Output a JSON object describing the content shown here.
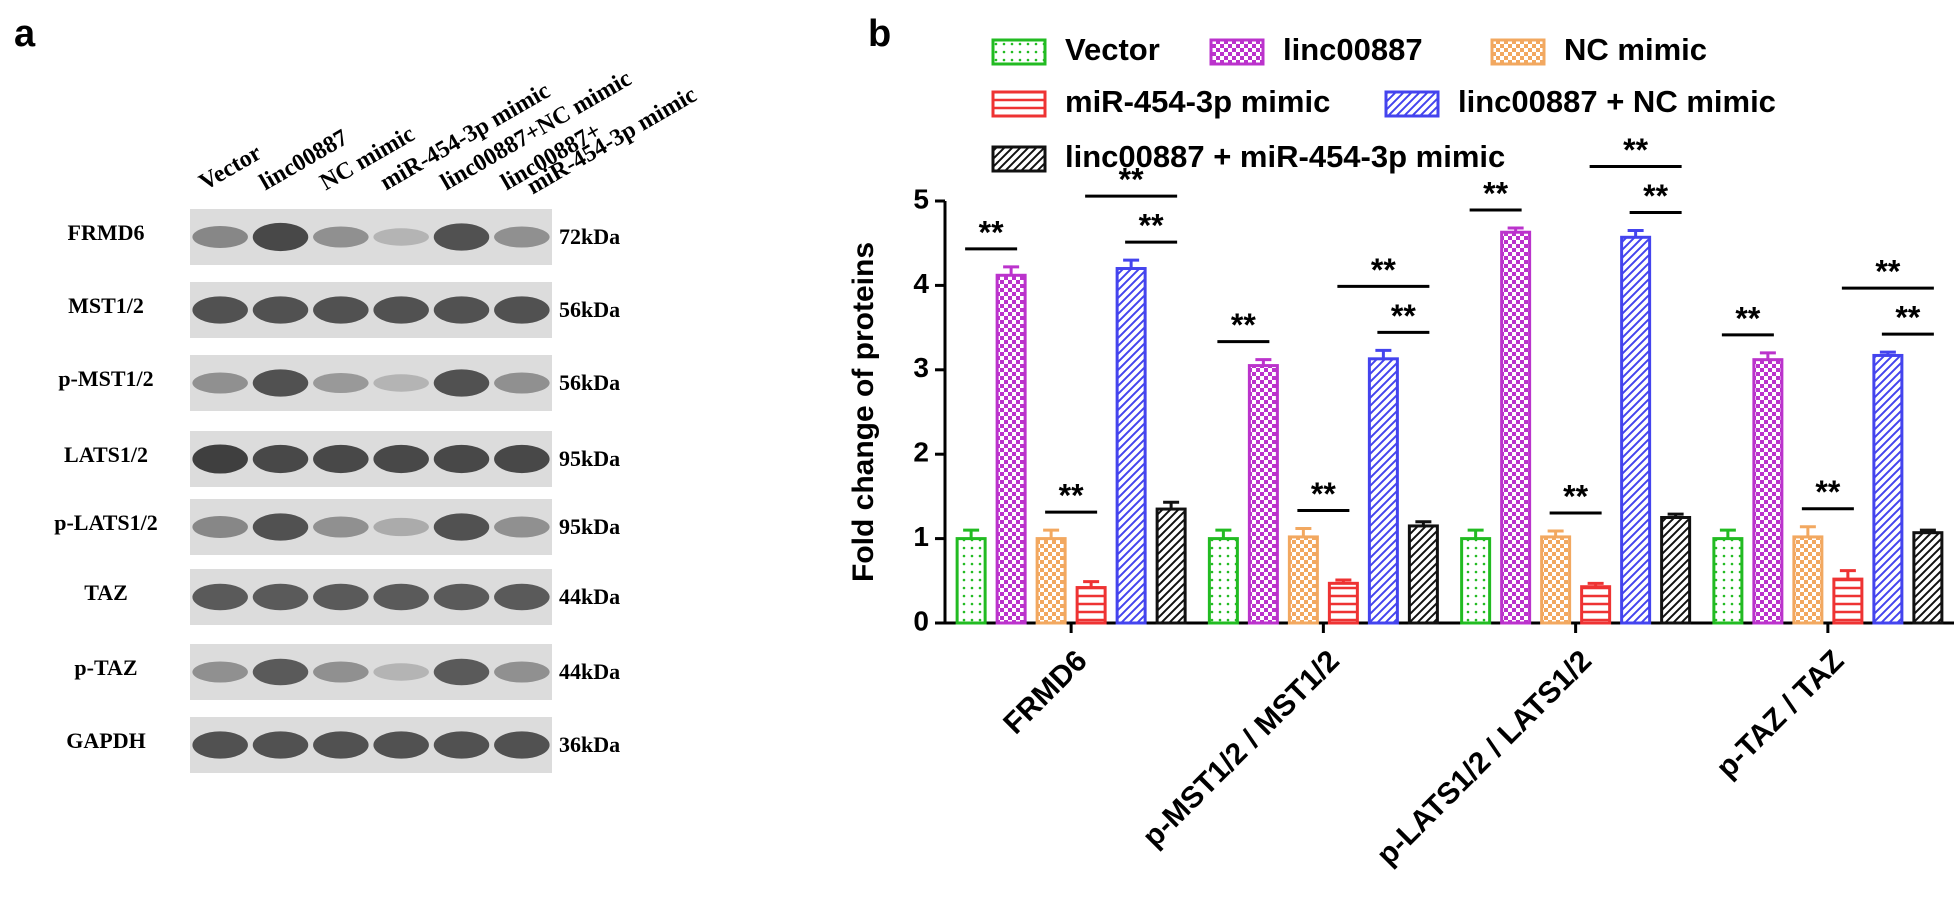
{
  "panel_a": {
    "label": "a",
    "lanes": [
      [
        "Vector"
      ],
      [
        "linc00887"
      ],
      [
        "NC mimic"
      ],
      [
        "miR-454-3p mimic"
      ],
      [
        "linc00887+NC mimic"
      ],
      [
        "linc00887+",
        "miR-454-3p mimic"
      ]
    ],
    "rows": [
      {
        "protein": "FRMD6",
        "size": "72kDa"
      },
      {
        "protein": "MST1/2",
        "size": "56kDa"
      },
      {
        "protein": "p-MST1/2",
        "size": "56kDa"
      },
      {
        "protein": "LATS1/2",
        "size": "95kDa"
      },
      {
        "protein": "p-LATS1/2",
        "size": "95kDa"
      },
      {
        "protein": "TAZ",
        "size": "44kDa"
      },
      {
        "protein": "p-TAZ",
        "size": "44kDa"
      },
      {
        "protein": "GAPDH",
        "size": "36kDa"
      }
    ]
  },
  "chart_data": {
    "type": "bar",
    "panel_label": "b",
    "y_label": "Fold change of proteins",
    "categories": [
      "FRMD6",
      "p-MST1/2 / MST1/2",
      "p-LATS1/2 / LATS1/2",
      "p-TAZ / TAZ"
    ],
    "series": [
      {
        "name": "Vector",
        "color": "#22bb22",
        "pattern": "dots",
        "values": [
          1.0,
          1.0,
          1.0,
          1.0
        ],
        "errors": [
          0.1,
          0.1,
          0.1,
          0.1
        ]
      },
      {
        "name": "linc00887",
        "color": "#bb33cc",
        "pattern": "checker",
        "values": [
          4.12,
          3.05,
          4.63,
          3.12
        ],
        "errors": [
          0.1,
          0.07,
          0.05,
          0.08
        ]
      },
      {
        "name": "NC mimic",
        "color": "#f2a860",
        "pattern": "checker",
        "values": [
          1.0,
          1.02,
          1.02,
          1.02
        ],
        "errors": [
          0.1,
          0.1,
          0.07,
          0.12
        ]
      },
      {
        "name": "miR-454-3p mimic",
        "color": "#ee3333",
        "pattern": "hlines",
        "values": [
          0.42,
          0.47,
          0.43,
          0.52
        ],
        "errors": [
          0.07,
          0.04,
          0.04,
          0.1
        ]
      },
      {
        "name": "linc00887 + NC mimic",
        "color": "#4444ee",
        "pattern": "diagonal",
        "values": [
          4.2,
          3.13,
          4.57,
          3.17
        ],
        "errors": [
          0.1,
          0.1,
          0.08,
          0.04
        ]
      },
      {
        "name": "linc00887 + miR-454-3p mimic",
        "color": "#111111",
        "pattern": "diagonal",
        "values": [
          1.35,
          1.15,
          1.25,
          1.07
        ],
        "errors": [
          0.08,
          0.05,
          0.04,
          0.03
        ]
      }
    ],
    "comparisons": [
      {
        "label": "**",
        "series": [
          0,
          1
        ]
      },
      {
        "label": "**",
        "series": [
          2,
          3
        ]
      },
      {
        "label": "**",
        "series": [
          3,
          5
        ]
      },
      {
        "label": "**",
        "series": [
          4,
          5
        ]
      }
    ],
    "ylim": [
      0,
      5
    ],
    "yticks": [
      0,
      1,
      2,
      3,
      4,
      5
    ]
  }
}
